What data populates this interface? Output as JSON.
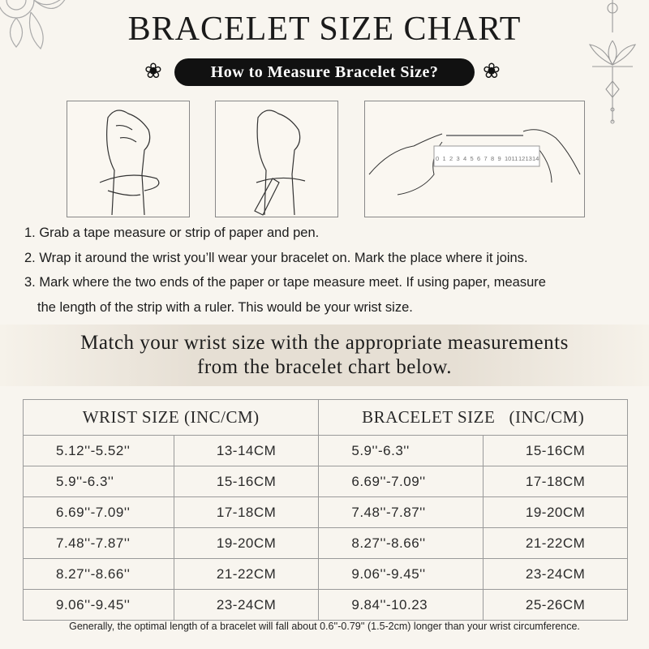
{
  "header": {
    "title": "BRACELET SIZE CHART",
    "subtitle": "How to Measure Bracelet Size?"
  },
  "ruler": {
    "marks": [
      "0",
      "1",
      "2",
      "3",
      "4",
      "5",
      "6",
      "7",
      "8",
      "9",
      "10",
      "11",
      "12",
      "13",
      "14"
    ]
  },
  "steps": [
    "1. Grab a tape measure or strip of paper and pen.",
    "2. Wrap it around the wrist you’ll wear your bracelet on. Mark the place where it joins.",
    "3. Mark where the two ends of the paper or tape measure meet. If using paper, measure",
    "the length of the strip with a ruler. This would be your wrist size."
  ],
  "band": {
    "line1": "Match your wrist size with the appropriate measurements",
    "line2": "from the bracelet chart below."
  },
  "table": {
    "headers": [
      "WRIST SIZE (INC/CM)",
      "BRACELET SIZE   (INC/CM)"
    ],
    "rows": [
      [
        "5.12''-5.52''",
        "13-14CM",
        "5.9''-6.3''",
        "15-16CM"
      ],
      [
        "5.9''-6.3''",
        "15-16CM",
        "6.69''-7.09''",
        "17-18CM"
      ],
      [
        "6.69''-7.09''",
        "17-18CM",
        "7.48''-7.87''",
        "19-20CM"
      ],
      [
        "7.48''-7.87''",
        "19-20CM",
        "8.27''-8.66''",
        "21-22CM"
      ],
      [
        "8.27''-8.66''",
        "21-22CM",
        "9.06''-9.45''",
        "23-24CM"
      ],
      [
        "9.06''-9.45''",
        "23-24CM",
        "9.84''-10.23",
        "25-26CM"
      ]
    ]
  },
  "footnote": "Generally, the optimal length of a bracelet will fall about 0.6''-0.79'' (1.5-2cm) longer than your wrist circumference."
}
